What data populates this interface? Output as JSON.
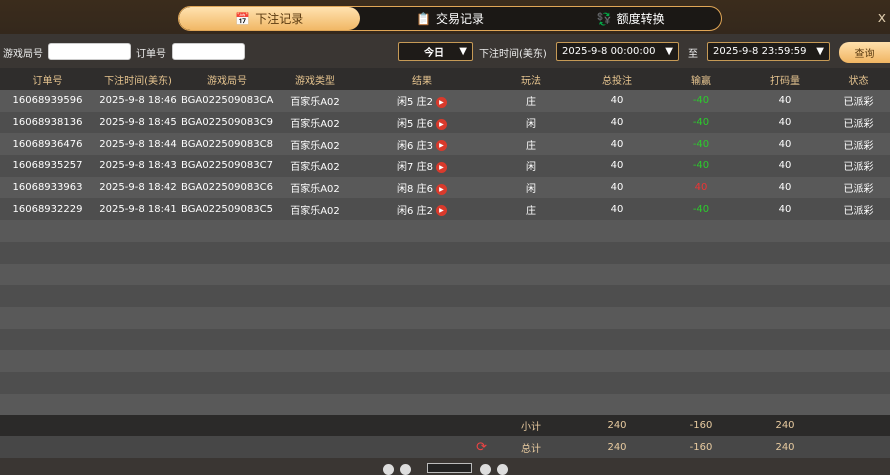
{
  "tabs": [
    {
      "label": "下注记录",
      "icon": "calendar-icon",
      "active": true
    },
    {
      "label": "交易记录",
      "icon": "clipboard-icon"
    },
    {
      "label": "额度转换",
      "icon": "coin-transfer-icon"
    }
  ],
  "close_label": "x",
  "filter": {
    "game_no_label": "游戏局号",
    "game_no_value": "",
    "order_no_label": "订单号",
    "order_no_value": "",
    "range": "今日",
    "time_label": "下注时间(美东)",
    "start": "2025-9-8 00:00:00",
    "to": "至",
    "end": "2025-9-8 23:59:59",
    "query": "查询"
  },
  "columns": [
    "订单号",
    "下注时间(美东)",
    "游戏局号",
    "游戏类型",
    "结果",
    "玩法",
    "总投注",
    "输赢",
    "打码量",
    "状态"
  ],
  "rows": [
    [
      "16068939596",
      "2025-9-8 18:46",
      "BGA022509083CA",
      "百家乐A02",
      "闲5 庄2",
      "庄",
      "40",
      "-40",
      "40",
      "已派彩"
    ],
    [
      "16068938136",
      "2025-9-8 18:45",
      "BGA022509083C9",
      "百家乐A02",
      "闲5 庄6",
      "闲",
      "40",
      "-40",
      "40",
      "已派彩"
    ],
    [
      "16068936476",
      "2025-9-8 18:44",
      "BGA022509083C8",
      "百家乐A02",
      "闲6 庄3",
      "庄",
      "40",
      "-40",
      "40",
      "已派彩"
    ],
    [
      "16068935257",
      "2025-9-8 18:43",
      "BGA022509083C7",
      "百家乐A02",
      "闲7 庄8",
      "闲",
      "40",
      "-40",
      "40",
      "已派彩"
    ],
    [
      "16068933963",
      "2025-9-8 18:42",
      "BGA022509083C6",
      "百家乐A02",
      "闲8 庄6",
      "闲",
      "40",
      "40",
      "40",
      "已派彩"
    ],
    [
      "16068932229",
      "2025-9-8 18:41",
      "BGA022509083C5",
      "百家乐A02",
      "闲6 庄2",
      "庄",
      "40",
      "-40",
      "40",
      "已派彩"
    ]
  ],
  "subtotal": {
    "label": "小计",
    "bet": "240",
    "winloss": "-160",
    "turnover": "240"
  },
  "total": {
    "label": "总计",
    "bet": "240",
    "winloss": "-160",
    "turnover": "240"
  },
  "colors": {
    "accent": "#f1b866",
    "loss": "#2ccc2c",
    "win": "#e33"
  }
}
